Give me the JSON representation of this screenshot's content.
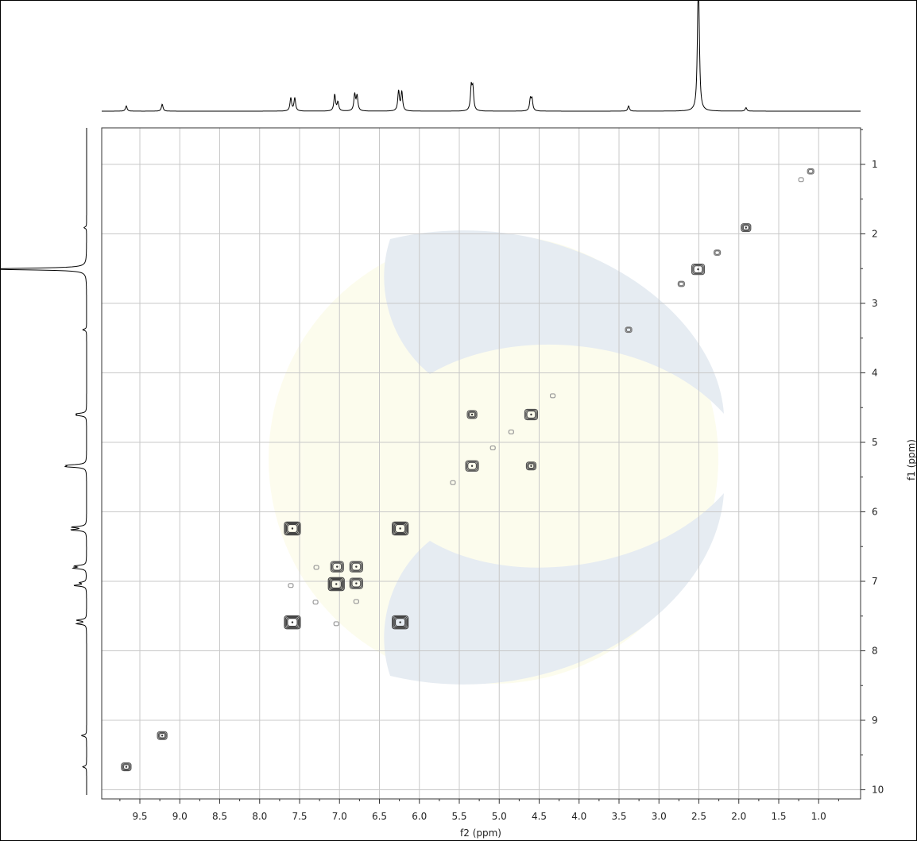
{
  "chart_data": {
    "type": "heatmap",
    "subtype": "2D NMR correlation (COSY) contour plot with 1D projections",
    "xlabel": "f2 (ppm)",
    "ylabel": "f1 (ppm)",
    "x_axis": {
      "reversed": true,
      "ticks": [
        9.5,
        9.0,
        8.5,
        8.0,
        7.5,
        7.0,
        6.5,
        6.0,
        5.5,
        5.0,
        4.5,
        4.0,
        3.5,
        3.0,
        2.5,
        2.0,
        1.5,
        1.0
      ],
      "tick_labels": [
        "9.5",
        "9.0",
        "8.5",
        "8.0",
        "7.5",
        "7.0",
        "6.5",
        "6.0",
        "5.5",
        "5.0",
        "4.5",
        "4.0",
        "3.5",
        "3.0",
        "2.5",
        "2.0",
        "1.5",
        "1.0"
      ]
    },
    "y_axis": {
      "reversed": false,
      "position": "right",
      "ticks": [
        1,
        2,
        3,
        4,
        5,
        6,
        7,
        8,
        9,
        10
      ],
      "tick_labels": [
        "1",
        "2",
        "3",
        "4",
        "5",
        "6",
        "7",
        "8",
        "9",
        "10"
      ]
    },
    "grid": true,
    "top_projection_peaks": [
      {
        "ppm": 9.67,
        "h": 0.06
      },
      {
        "ppm": 9.22,
        "h": 0.08
      },
      {
        "ppm": 7.61,
        "h": 0.15
      },
      {
        "ppm": 7.56,
        "h": 0.15
      },
      {
        "ppm": 7.06,
        "h": 0.19
      },
      {
        "ppm": 7.02,
        "h": 0.1
      },
      {
        "ppm": 6.81,
        "h": 0.19
      },
      {
        "ppm": 6.78,
        "h": 0.17
      },
      {
        "ppm": 6.26,
        "h": 0.23
      },
      {
        "ppm": 6.22,
        "h": 0.22
      },
      {
        "ppm": 5.35,
        "h": 0.27
      },
      {
        "ppm": 5.33,
        "h": 0.24
      },
      {
        "ppm": 4.61,
        "h": 0.13
      },
      {
        "ppm": 4.59,
        "h": 0.13
      },
      {
        "ppm": 3.38,
        "h": 0.06
      },
      {
        "ppm": 2.51,
        "h": 1.0
      },
      {
        "ppm": 2.5,
        "h": 0.68
      },
      {
        "ppm": 1.91,
        "h": 0.04
      }
    ],
    "cross_peaks": [
      {
        "f2": 1.1,
        "f1": 1.1,
        "size": 1
      },
      {
        "f2": 1.22,
        "f1": 1.22,
        "size": 0
      },
      {
        "f2": 1.91,
        "f1": 1.91,
        "size": 2
      },
      {
        "f2": 2.27,
        "f1": 2.27,
        "size": 1
      },
      {
        "f2": 2.51,
        "f1": 2.51,
        "size": 3
      },
      {
        "f2": 2.72,
        "f1": 2.72,
        "size": 1
      },
      {
        "f2": 3.38,
        "f1": 3.38,
        "size": 1
      },
      {
        "f2": 4.33,
        "f1": 4.33,
        "size": 0
      },
      {
        "f2": 4.6,
        "f1": 4.6,
        "size": 3
      },
      {
        "f2": 5.34,
        "f1": 4.6,
        "size": 2
      },
      {
        "f2": 4.85,
        "f1": 4.85,
        "size": 0
      },
      {
        "f2": 5.08,
        "f1": 5.08,
        "size": 0
      },
      {
        "f2": 5.34,
        "f1": 5.34,
        "size": 3
      },
      {
        "f2": 4.6,
        "f1": 5.34,
        "size": 2
      },
      {
        "f2": 5.58,
        "f1": 5.58,
        "size": 0
      },
      {
        "f2": 7.59,
        "f1": 6.24,
        "size": 4
      },
      {
        "f2": 6.24,
        "f1": 6.24,
        "size": 4
      },
      {
        "f2": 7.59,
        "f1": 7.59,
        "size": 4
      },
      {
        "f2": 6.24,
        "f1": 7.59,
        "size": 4
      },
      {
        "f2": 7.03,
        "f1": 6.79,
        "size": 3
      },
      {
        "f2": 6.79,
        "f1": 6.79,
        "size": 3
      },
      {
        "f2": 7.04,
        "f1": 7.04,
        "size": 4
      },
      {
        "f2": 6.79,
        "f1": 7.03,
        "size": 3
      },
      {
        "f2": 7.29,
        "f1": 6.8,
        "size": 0
      },
      {
        "f2": 6.79,
        "f1": 7.29,
        "size": 0
      },
      {
        "f2": 7.3,
        "f1": 7.3,
        "size": 0
      },
      {
        "f2": 7.61,
        "f1": 7.06,
        "size": 0
      },
      {
        "f2": 7.04,
        "f1": 7.61,
        "size": 0
      },
      {
        "f2": 9.22,
        "f1": 9.22,
        "size": 2
      },
      {
        "f2": 9.67,
        "f1": 9.67,
        "size": 2
      }
    ]
  }
}
